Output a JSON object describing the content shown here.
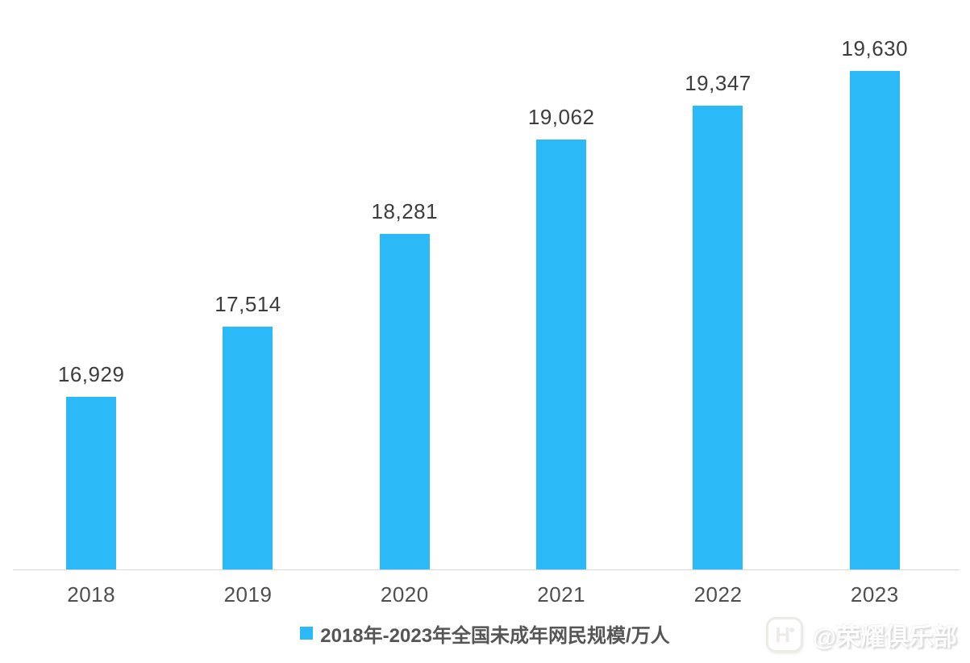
{
  "chart_data": {
    "type": "bar",
    "categories": [
      "2018",
      "2019",
      "2020",
      "2021",
      "2022",
      "2023"
    ],
    "values": [
      16929,
      17514,
      18281,
      19062,
      19347,
      19630
    ],
    "value_labels": [
      "16,929",
      "17,514",
      "18,281",
      "19,062",
      "19,347",
      "19,630"
    ],
    "title": "",
    "xlabel": "",
    "ylabel": "",
    "ylim": [
      15500,
      20000
    ],
    "grid": false,
    "bar_color": "#2BB9F7",
    "axis_line_color": "#D9D9D9",
    "legend": {
      "label": "2018年-2023年全国未成年网民规模/万人",
      "position": "bottom",
      "swatch_color": "#2BB9F7"
    }
  },
  "watermark": {
    "handle": "@荣耀俱乐部",
    "logo_letter": "H"
  }
}
